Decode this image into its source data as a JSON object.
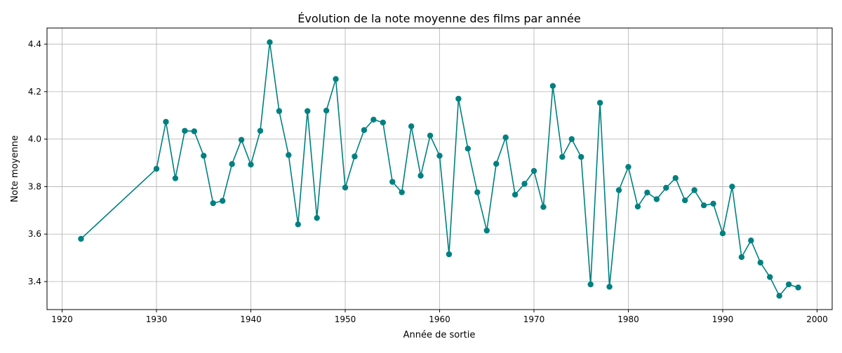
{
  "chart_data": {
    "type": "line",
    "title": "Évolution de la note moyenne des films par année",
    "xlabel": "Année de sortie",
    "ylabel": "Note moyenne",
    "xlim": [
      1918.4,
      2001.6
    ],
    "ylim": [
      3.282,
      4.468
    ],
    "xticks": [
      1920,
      1930,
      1940,
      1950,
      1960,
      1970,
      1980,
      1990,
      2000
    ],
    "yticks": [
      3.4,
      3.6,
      3.8,
      4.0,
      4.2,
      4.4
    ],
    "grid": true,
    "legend": "none",
    "color": "#008080",
    "marker": "circle",
    "series": [
      {
        "x": [
          1922,
          1930,
          1931,
          1932,
          1933,
          1934,
          1935,
          1936,
          1937,
          1938,
          1939,
          1940,
          1941,
          1942,
          1943,
          1944,
          1945,
          1946,
          1947,
          1948,
          1949,
          1950,
          1951,
          1952,
          1953,
          1954,
          1955,
          1956,
          1957,
          1958,
          1959,
          1960,
          1961,
          1962,
          1963,
          1964,
          1965,
          1966,
          1967,
          1968,
          1969,
          1970,
          1971,
          1972,
          1973,
          1974,
          1975,
          1976,
          1977,
          1978,
          1979,
          1980,
          1981,
          1982,
          1983,
          1984,
          1985,
          1986,
          1987,
          1988,
          1989,
          1990,
          1991,
          1992,
          1993,
          1994,
          1995,
          1996,
          1997,
          1998
        ],
        "y": [
          3.58,
          3.875,
          4.073,
          3.835,
          4.035,
          4.033,
          3.93,
          3.73,
          3.74,
          3.895,
          3.997,
          3.893,
          4.035,
          4.408,
          4.118,
          3.933,
          3.641,
          4.118,
          3.668,
          4.12,
          4.253,
          3.796,
          3.927,
          4.038,
          4.082,
          4.07,
          3.82,
          3.776,
          4.054,
          3.846,
          4.015,
          3.93,
          3.515,
          4.17,
          3.96,
          3.776,
          3.615,
          3.896,
          4.007,
          3.766,
          3.812,
          3.866,
          3.714,
          4.224,
          3.925,
          4.0,
          3.925,
          3.388,
          4.153,
          3.378,
          3.785,
          3.883,
          3.716,
          3.775,
          3.747,
          3.795,
          3.836,
          3.742,
          3.785,
          3.721,
          3.728,
          3.603,
          3.8,
          3.503,
          3.573,
          3.48,
          3.419,
          3.34,
          3.388,
          3.375
        ]
      }
    ]
  }
}
